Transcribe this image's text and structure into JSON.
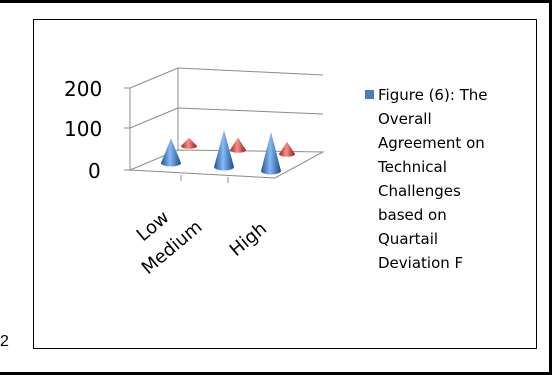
{
  "page": {
    "stray_character": "2"
  },
  "chart_data": {
    "type": "3d-cone-bar",
    "categories": [
      "Low",
      "Medium",
      "High"
    ],
    "series": [
      {
        "name": "Figure (6): The Overall Agreement on Technical Challenges based on Quartail Deviation F",
        "values": [
          60,
          90,
          95
        ],
        "color": "#4a7ebb"
      },
      {
        "name": "",
        "values": [
          20,
          30,
          30
        ],
        "color": "#c0504d"
      }
    ],
    "y_ticks": [
      "200",
      "100",
      "0"
    ],
    "ylim": [
      0,
      200
    ],
    "legend": {
      "position": "right",
      "lines": [
        "Figure (6): The",
        "Overall",
        "Agreement on",
        "Technical",
        "Challenges",
        "based on",
        "Quartail",
        "Deviation F"
      ]
    }
  }
}
